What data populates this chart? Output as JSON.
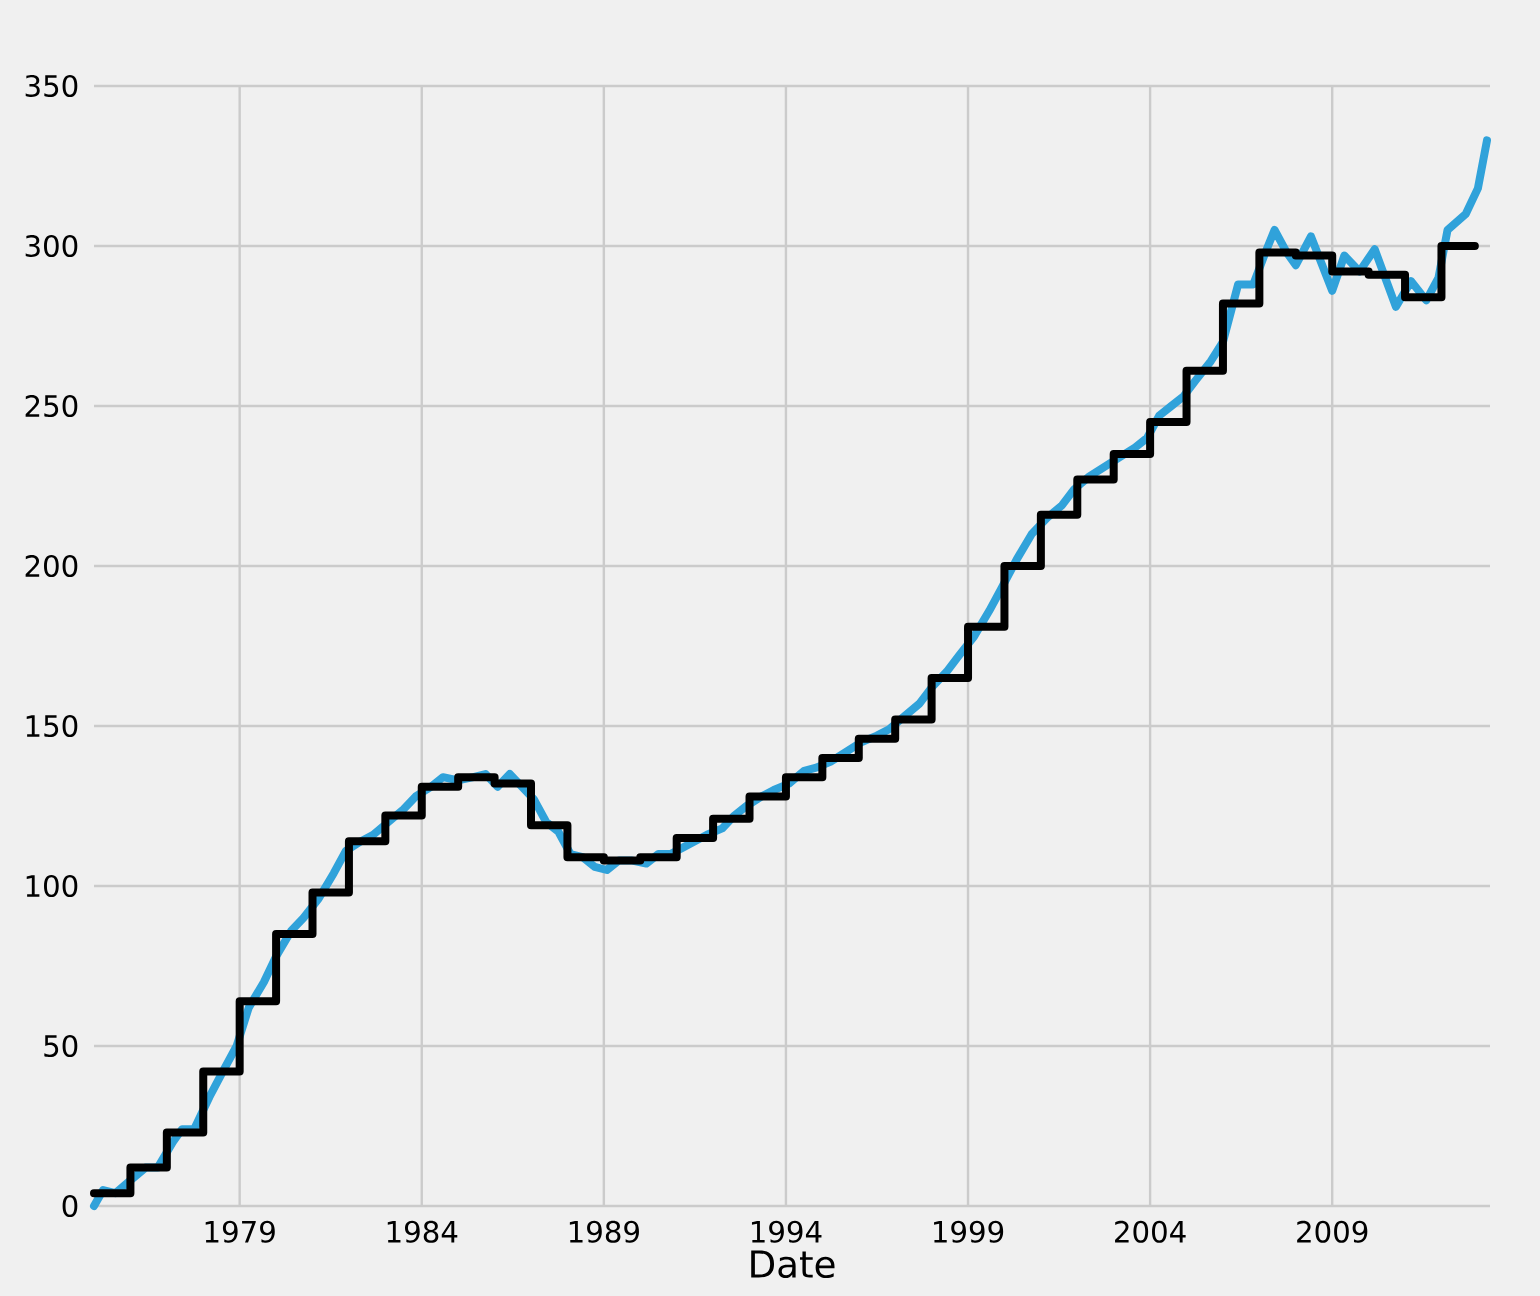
{
  "chart_data": {
    "type": "line",
    "xlabel": "Date",
    "xlim": [
      "1975-01",
      "2013-05"
    ],
    "ylim": [
      0,
      350
    ],
    "xticks": [
      "1979",
      "1984",
      "1989",
      "1994",
      "1999",
      "2004",
      "2009"
    ],
    "yticks": [
      0,
      50,
      100,
      150,
      200,
      250,
      300,
      350
    ],
    "grid": true,
    "series": [
      {
        "color": "#30a2da",
        "x": [
          "1975-01",
          "1975-04",
          "1975-08",
          "1976-01",
          "1976-06",
          "1976-10",
          "1977-03",
          "1977-06",
          "1977-10",
          "1978-03",
          "1978-08",
          "1978-12",
          "1979-04",
          "1979-09",
          "1980-01",
          "1980-06",
          "1980-10",
          "1981-03",
          "1981-08",
          "1981-12",
          "1982-05",
          "1982-09",
          "1983-02",
          "1983-07",
          "1983-11",
          "1984-04",
          "1984-08",
          "1985-01",
          "1985-06",
          "1985-10",
          "1986-02",
          "1986-06",
          "1986-10",
          "1987-02",
          "1987-06",
          "1987-10",
          "1988-02",
          "1988-06",
          "1988-10",
          "1989-02",
          "1989-06",
          "1989-10",
          "1990-03",
          "1990-07",
          "1990-11",
          "1991-03",
          "1991-07",
          "1991-11",
          "1992-04",
          "1992-08",
          "1992-12",
          "1993-05",
          "1993-09",
          "1994-02",
          "1994-07",
          "1994-11",
          "1995-04",
          "1995-09",
          "1996-02",
          "1996-07",
          "1996-11",
          "1997-04",
          "1997-09",
          "1998-01",
          "1998-06",
          "1998-10",
          "1999-03",
          "1999-08",
          "1999-12",
          "2000-05",
          "2000-10",
          "2001-03",
          "2001-08",
          "2001-12",
          "2002-05",
          "2002-10",
          "2003-03",
          "2003-08",
          "2003-12",
          "2004-04",
          "2004-08",
          "2004-12",
          "2005-04",
          "2005-09",
          "2006-01",
          "2006-06",
          "2006-11",
          "2007-03",
          "2007-06",
          "2007-10",
          "2008-01",
          "2008-06",
          "2009-01",
          "2009-05",
          "2009-10",
          "2010-03",
          "2010-10",
          "2011-03",
          "2011-08",
          "2011-12",
          "2012-03",
          "2012-09",
          "2013-01",
          "2013-04"
        ],
        "values": [
          0,
          5,
          4,
          8,
          12,
          12,
          20,
          24,
          24,
          34,
          43,
          50,
          62,
          70,
          78,
          86,
          90,
          96,
          104,
          111,
          114,
          116,
          120,
          124,
          128,
          131,
          134,
          133,
          134,
          135,
          131,
          135,
          131,
          127,
          120,
          117,
          110,
          109,
          106,
          105,
          108,
          108,
          107,
          110,
          110,
          112,
          114,
          116,
          118,
          122,
          125,
          128,
          130,
          132,
          136,
          137,
          139,
          142,
          145,
          147,
          149,
          153,
          157,
          162,
          167,
          172,
          178,
          186,
          193,
          202,
          210,
          215,
          219,
          224,
          228,
          231,
          234,
          237,
          240,
          247,
          250,
          253,
          258,
          264,
          270,
          288,
          288,
          298,
          305,
          298,
          294,
          303,
          286,
          297,
          292,
          299,
          281,
          289,
          283,
          290,
          305,
          310,
          318,
          333
        ]
      },
      {
        "color": "#000000",
        "type": "step",
        "x": [
          "1975",
          "1976",
          "1977",
          "1978",
          "1979",
          "1980",
          "1981",
          "1982",
          "1983",
          "1984",
          "1985",
          "1986",
          "1987",
          "1988",
          "1989",
          "1990",
          "1991",
          "1992",
          "1993",
          "1994",
          "1995",
          "1996",
          "1997",
          "1998",
          "1999",
          "2000",
          "2001",
          "2002",
          "2003",
          "2004",
          "2005",
          "2006",
          "2007",
          "2008",
          "2009",
          "2010",
          "2011",
          "2012",
          "2012-12"
        ],
        "values": [
          4,
          12,
          23,
          42,
          64,
          85,
          98,
          114,
          122,
          131,
          134,
          132,
          119,
          109,
          108,
          109,
          115,
          121,
          128,
          134,
          140,
          146,
          152,
          165,
          181,
          200,
          216,
          227,
          235,
          245,
          261,
          282,
          298,
          297,
          292,
          291,
          284,
          300,
          300
        ]
      }
    ]
  }
}
